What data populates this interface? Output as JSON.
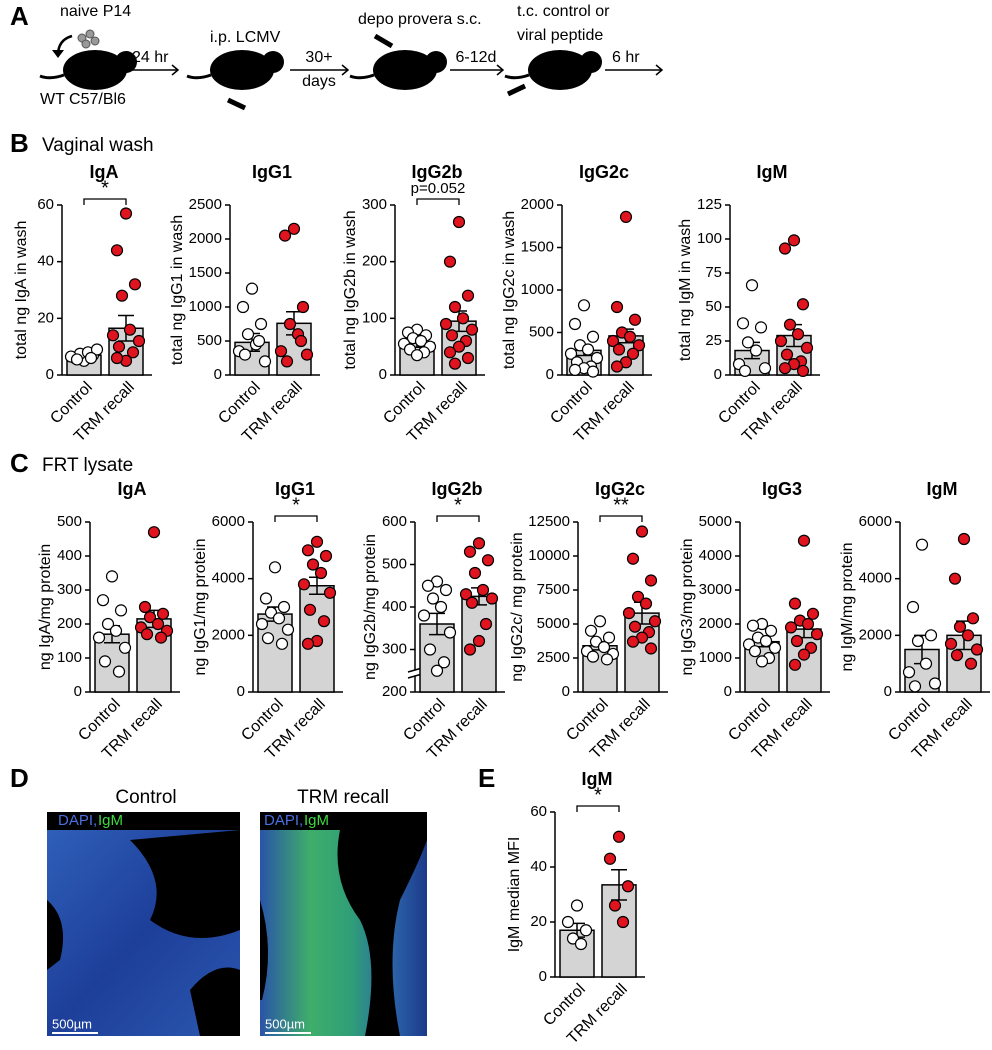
{
  "panel_labels": {
    "a": "A",
    "b": "B",
    "c": "C",
    "d": "D",
    "e": "E"
  },
  "sections": {
    "b": "Vaginal wash",
    "c": "FRT lysate"
  },
  "schematic": {
    "cells": "naive P14",
    "strain": "WT C57/Bl6",
    "step1": "24 hr",
    "infection": "i.p. LCMV",
    "step2_a": "30+",
    "step2_b": "days",
    "depo": "depo provera s.c.",
    "step3": "6-12d",
    "peptide_a": "t.c. control or",
    "peptide_b": "viral peptide",
    "step4": "6 hr"
  },
  "images": {
    "left_title": "Control",
    "right_title": "TRM recall",
    "stain_a": "DAPI,",
    "stain_b": "IgM",
    "scale": "500µm"
  },
  "chart_data": [
    {
      "type": "bar",
      "title": "IgA",
      "ylabel": "total ng IgA in wash",
      "categories": [
        "Control",
        "TRM recall"
      ],
      "values": [
        7,
        16.5
      ],
      "errors": [
        0.7,
        4.5
      ],
      "points": [
        [
          5,
          6,
          7,
          7.5,
          8,
          6.5,
          9,
          5.5,
          6
        ],
        [
          57,
          44,
          32,
          28,
          16,
          14,
          12,
          10,
          8,
          5,
          6
        ]
      ],
      "bar_color": "#d4d4d4",
      "point_colors": [
        "#ffffff",
        "#e0141e"
      ],
      "ylim": [
        0,
        60
      ],
      "yticks": [
        0,
        20,
        40,
        60
      ],
      "annotation": "*"
    },
    {
      "type": "bar",
      "title": "IgG1",
      "ylabel": "total ng IgG1 in wash",
      "categories": [
        "Control",
        "TRM recall"
      ],
      "values": [
        480,
        760
      ],
      "errors": [
        130,
        170
      ],
      "points": [
        [
          1270,
          1000,
          750,
          600,
          450,
          350,
          200,
          300,
          500
        ],
        [
          2150,
          2050,
          1000,
          750,
          600,
          350,
          300,
          200,
          500
        ]
      ],
      "bar_color": "#d4d4d4",
      "point_colors": [
        "#ffffff",
        "#e0141e"
      ],
      "ylim": [
        0,
        2500
      ],
      "yticks": [
        0,
        500,
        1000,
        1500,
        2000,
        2500
      ]
    },
    {
      "type": "bar",
      "title": "IgG2b",
      "ylabel": "total ng IgG2b in wash",
      "categories": [
        "Control",
        "TRM recall"
      ],
      "values": [
        57,
        95
      ],
      "errors": [
        8,
        18
      ],
      "points": [
        [
          80,
          75,
          70,
          65,
          60,
          55,
          50,
          45,
          40,
          35
        ],
        [
          270,
          200,
          140,
          120,
          100,
          90,
          80,
          70,
          60,
          50,
          40,
          30,
          20
        ]
      ],
      "bar_color": "#d4d4d4",
      "point_colors": [
        "#ffffff",
        "#e0141e"
      ],
      "ylim": [
        0,
        300
      ],
      "yticks": [
        0,
        100,
        200,
        300
      ],
      "annotation": "p=0.052"
    },
    {
      "type": "bar",
      "title": "IgG2c",
      "ylabel": "total ng IgG2c in wash",
      "categories": [
        "Control",
        "TRM recall"
      ],
      "values": [
        290,
        460
      ],
      "errors": [
        60,
        80
      ],
      "points": [
        [
          820,
          600,
          450,
          350,
          300,
          250,
          200,
          150,
          100,
          80,
          60,
          40
        ],
        [
          1860,
          800,
          650,
          500,
          450,
          400,
          350,
          300,
          250,
          150,
          100
        ]
      ],
      "bar_color": "#d4d4d4",
      "point_colors": [
        "#ffffff",
        "#e0141e"
      ],
      "ylim": [
        0,
        2000
      ],
      "yticks": [
        0,
        500,
        1000,
        1500,
        2000
      ]
    },
    {
      "type": "bar",
      "title": "IgM",
      "ylabel": "total ng IgM in wash",
      "categories": [
        "Control",
        "TRM recall"
      ],
      "values": [
        18,
        29
      ],
      "errors": [
        6,
        8
      ],
      "points": [
        [
          66,
          38,
          35,
          24,
          18,
          8,
          5,
          3
        ],
        [
          99,
          93,
          52,
          37,
          30,
          25,
          20,
          15,
          10,
          8,
          5,
          3
        ]
      ],
      "bar_color": "#d4d4d4",
      "point_colors": [
        "#ffffff",
        "#e0141e"
      ],
      "ylim": [
        0,
        125
      ],
      "yticks": [
        0,
        25,
        50,
        75,
        100,
        125
      ]
    },
    {
      "type": "bar",
      "title": "IgA",
      "ylabel": "ng IgA/mg protein",
      "categories": [
        "Control",
        "TRM recall"
      ],
      "values": [
        170,
        215
      ],
      "errors": [
        25,
        25
      ],
      "points": [
        [
          340,
          270,
          240,
          200,
          180,
          160,
          130,
          90,
          60
        ],
        [
          470,
          250,
          230,
          220,
          200,
          190,
          180,
          170,
          160
        ]
      ],
      "bar_color": "#d4d4d4",
      "point_colors": [
        "#ffffff",
        "#e0141e"
      ],
      "ylim": [
        0,
        500
      ],
      "yticks": [
        0,
        100,
        200,
        300,
        400,
        500
      ]
    },
    {
      "type": "bar",
      "title": "IgG1",
      "ylabel": "ng IgG1/mg protein",
      "categories": [
        "Control",
        "TRM recall"
      ],
      "values": [
        2750,
        3750
      ],
      "errors": [
        250,
        300
      ],
      "points": [
        [
          4400,
          3300,
          3000,
          2800,
          2600,
          2400,
          2200,
          1900,
          1700
        ],
        [
          5300,
          5000,
          4800,
          4500,
          4200,
          3800,
          3500,
          2900,
          2500,
          1800,
          1700
        ]
      ],
      "bar_color": "#d4d4d4",
      "point_colors": [
        "#ffffff",
        "#e0141e"
      ],
      "ylim": [
        0,
        6000
      ],
      "yticks": [
        0,
        2000,
        4000,
        6000
      ],
      "annotation": "*"
    },
    {
      "type": "bar",
      "title": "IgG2b",
      "ylabel": "ng IgG2b/mg protein",
      "categories": [
        "Control",
        "TRM recall"
      ],
      "values": [
        360,
        425
      ],
      "errors": [
        25,
        20
      ],
      "points": [
        [
          460,
          450,
          440,
          420,
          400,
          380,
          340,
          300,
          270,
          250
        ],
        [
          550,
          530,
          510,
          480,
          440,
          430,
          420,
          410,
          360,
          320,
          300
        ]
      ],
      "bar_color": "#d4d4d4",
      "point_colors": [
        "#ffffff",
        "#e0141e"
      ],
      "ylim": [
        200,
        600
      ],
      "yticks": [
        200,
        300,
        400,
        500,
        600
      ],
      "axis_break": true,
      "annotation": "*"
    },
    {
      "type": "bar",
      "title": "IgG2c",
      "ylabel": "ng IgG2c/ mg protein",
      "categories": [
        "Control",
        "TRM recall"
      ],
      "values": [
        3400,
        5800
      ],
      "errors": [
        300,
        800
      ],
      "points": [
        [
          5200,
          4500,
          4000,
          3700,
          3300,
          3000,
          2800,
          2600,
          2400
        ],
        [
          11800,
          9800,
          8200,
          7000,
          6500,
          5800,
          5200,
          4800,
          4400,
          4000,
          3700,
          3200
        ]
      ],
      "bar_color": "#d4d4d4",
      "point_colors": [
        "#ffffff",
        "#e0141e"
      ],
      "ylim": [
        0,
        12500
      ],
      "yticks": [
        0,
        2500,
        5000,
        7500,
        10000,
        12500
      ],
      "annotation": "**"
    },
    {
      "type": "bar",
      "title": "IgG3",
      "ylabel": "ng IgG3/mg protein",
      "categories": [
        "Control",
        "TRM recall"
      ],
      "values": [
        1480,
        1850
      ],
      "errors": [
        150,
        250
      ],
      "points": [
        [
          2000,
          1950,
          1800,
          1600,
          1500,
          1400,
          1300,
          1200,
          1000,
          900
        ],
        [
          4450,
          2600,
          2300,
          2100,
          2000,
          1900,
          1700,
          1500,
          1300,
          1100,
          800
        ]
      ],
      "bar_color": "#d4d4d4",
      "point_colors": [
        "#ffffff",
        "#e0141e"
      ],
      "ylim": [
        0,
        5000
      ],
      "yticks": [
        0,
        1000,
        2000,
        3000,
        4000,
        5000
      ]
    },
    {
      "type": "bar",
      "title": "IgM",
      "ylabel": "ng IgM/mg protein",
      "categories": [
        "Control",
        "TRM recall"
      ],
      "values": [
        1500,
        2000
      ],
      "errors": [
        500,
        500
      ],
      "points": [
        [
          5200,
          3000,
          2000,
          1800,
          1000,
          700,
          300,
          200
        ],
        [
          5400,
          4000,
          2600,
          2300,
          2000,
          1700,
          1500,
          1300,
          1000
        ]
      ],
      "bar_color": "#d4d4d4",
      "point_colors": [
        "#ffffff",
        "#e0141e"
      ],
      "ylim": [
        0,
        6000
      ],
      "yticks": [
        0,
        2000,
        4000,
        6000
      ]
    },
    {
      "type": "bar",
      "title": "IgM",
      "ylabel": "IgM median MFI",
      "categories": [
        "Control",
        "TRM recall"
      ],
      "values": [
        17,
        33.5
      ],
      "errors": [
        2.5,
        5.5
      ],
      "points": [
        [
          26,
          20,
          17,
          14,
          12
        ],
        [
          51,
          43,
          33,
          26,
          20
        ]
      ],
      "bar_color": "#d4d4d4",
      "point_colors": [
        "#ffffff",
        "#e0141e"
      ],
      "ylim": [
        0,
        60
      ],
      "yticks": [
        0,
        20,
        40,
        60
      ],
      "annotation": "*"
    }
  ]
}
